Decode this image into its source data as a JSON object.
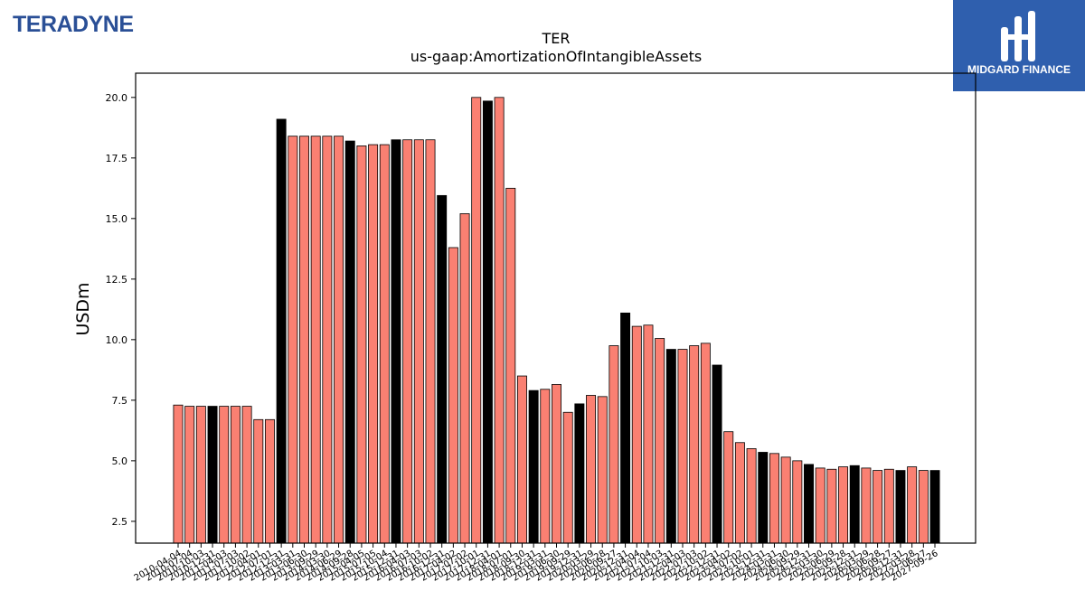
{
  "company_logo": {
    "text": "TERADYNE",
    "color": "#2a4f96"
  },
  "brand_logo": {
    "text": "MIDGARD FINANCE",
    "background": "#2f5fae",
    "icon": "midgard-mark-icon"
  },
  "chart_data": {
    "type": "bar",
    "title": "TER",
    "subtitle": "us-gaap:AmortizationOfIntangibleAssets",
    "xlabel": "",
    "ylabel": "USDm",
    "ylim": [
      1.6,
      21.0
    ],
    "yticks": [
      2.5,
      5.0,
      7.5,
      10.0,
      12.5,
      15.0,
      17.5,
      20.0
    ],
    "grid": false,
    "colors": {
      "quarter": "#fa8072",
      "annual": "#000000",
      "edge": "#000000"
    },
    "categories": [
      "2010-04-04",
      "2010-07-04",
      "2010-10-03",
      "2010-12-31",
      "2011-04-03",
      "2011-07-03",
      "2011-10-02",
      "2012-04-01",
      "2012-07-01",
      "2012-12-31",
      "2013-03-31",
      "2013-06-30",
      "2013-09-29",
      "2014-03-30",
      "2014-06-29",
      "2014-09-28",
      "2015-04-05",
      "2015-07-05",
      "2015-10-04",
      "2015-12-31",
      "2016-04-03",
      "2016-07-03",
      "2016-10-02",
      "2016-12-31",
      "2017-04-02",
      "2017-07-02",
      "2017-10-01",
      "2017-12-31",
      "2018-04-01",
      "2018-07-01",
      "2018-09-30",
      "2018-12-31",
      "2019-03-31",
      "2019-06-30",
      "2019-09-29",
      "2019-12-31",
      "2020-03-29",
      "2020-06-28",
      "2020-09-27",
      "2020-12-31",
      "2021-04-04",
      "2021-07-04",
      "2021-10-03",
      "2021-12-31",
      "2022-04-03",
      "2022-07-03",
      "2022-10-02",
      "2022-12-31",
      "2023-04-02",
      "2023-07-02",
      "2023-10-01",
      "2023-12-31",
      "2024-03-31",
      "2024-06-30",
      "2024-09-29",
      "2024-12-31",
      "2025-03-30",
      "2025-06-29",
      "2025-09-28",
      "2025-12-31",
      "2026-03-29",
      "2026-06-28",
      "2026-09-27",
      "2026-12-31",
      "2027-03-28",
      "2027-06-27",
      "2027-09-26"
    ],
    "values": [
      7.3,
      7.25,
      7.25,
      7.25,
      7.25,
      7.25,
      7.25,
      6.7,
      6.7,
      19.1,
      18.4,
      18.4,
      18.4,
      18.4,
      18.4,
      18.2,
      18.0,
      18.05,
      18.05,
      18.25,
      18.25,
      18.25,
      18.25,
      15.95,
      13.8,
      15.2,
      20.0,
      19.85,
      20.0,
      16.25,
      8.5,
      7.9,
      7.95,
      8.15,
      7.0,
      7.35,
      7.7,
      7.65,
      9.75,
      11.1,
      10.55,
      10.6,
      10.05,
      9.6,
      9.6,
      9.75,
      9.85,
      8.95,
      6.2,
      5.75,
      5.5,
      5.35,
      5.3,
      5.15,
      5.0,
      4.85,
      4.7,
      4.65,
      4.75,
      4.8,
      4.7,
      4.6,
      4.65,
      4.6,
      4.75,
      4.6,
      4.6
    ],
    "annual_flags": [
      0,
      0,
      0,
      1,
      0,
      0,
      0,
      0,
      0,
      1,
      0,
      0,
      0,
      0,
      0,
      1,
      0,
      0,
      0,
      1,
      0,
      0,
      0,
      1,
      0,
      0,
      0,
      1,
      0,
      0,
      0,
      1,
      0,
      0,
      0,
      1,
      0,
      0,
      0,
      1,
      0,
      0,
      0,
      1,
      0,
      0,
      0,
      1,
      0,
      0,
      0,
      1,
      0,
      0,
      0,
      1,
      0,
      0,
      0,
      1,
      0,
      0,
      0,
      1,
      0,
      0,
      1
    ]
  }
}
